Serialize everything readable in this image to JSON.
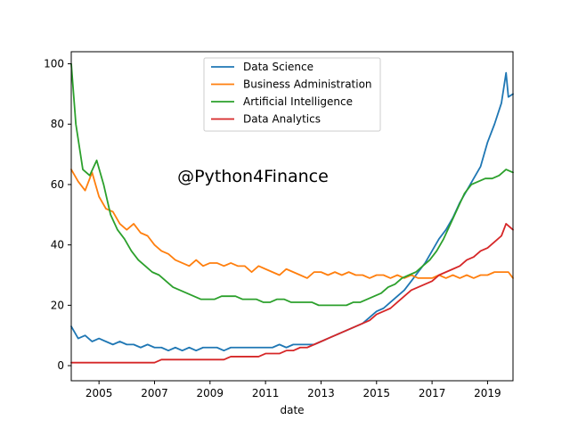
{
  "chart_data": {
    "type": "line",
    "xlabel": "date",
    "ylabel": "",
    "title": "",
    "xlim": [
      "2004-01",
      "2019-12"
    ],
    "ylim": [
      -5,
      104
    ],
    "x_ticks": [
      "2005",
      "2007",
      "2009",
      "2011",
      "2013",
      "2015",
      "2017",
      "2019"
    ],
    "y_ticks": [
      "0",
      "20",
      "40",
      "60",
      "80",
      "100"
    ],
    "legend_position": "top-center",
    "grid": false,
    "annotation": "@Python4Finance",
    "series": [
      {
        "name": "Data Science",
        "color": "#1f77b4",
        "points": [
          [
            "2004-01",
            13
          ],
          [
            "2004-04",
            9
          ],
          [
            "2004-07",
            10
          ],
          [
            "2004-10",
            8
          ],
          [
            "2005-01",
            9
          ],
          [
            "2005-04",
            8
          ],
          [
            "2005-07",
            7
          ],
          [
            "2005-10",
            8
          ],
          [
            "2006-01",
            7
          ],
          [
            "2006-04",
            7
          ],
          [
            "2006-07",
            6
          ],
          [
            "2006-10",
            7
          ],
          [
            "2007-01",
            6
          ],
          [
            "2007-04",
            6
          ],
          [
            "2007-07",
            5
          ],
          [
            "2007-10",
            6
          ],
          [
            "2008-01",
            5
          ],
          [
            "2008-04",
            6
          ],
          [
            "2008-07",
            5
          ],
          [
            "2008-10",
            6
          ],
          [
            "2009-01",
            6
          ],
          [
            "2009-04",
            6
          ],
          [
            "2009-07",
            5
          ],
          [
            "2009-10",
            6
          ],
          [
            "2010-01",
            6
          ],
          [
            "2010-04",
            6
          ],
          [
            "2010-07",
            6
          ],
          [
            "2010-10",
            6
          ],
          [
            "2011-01",
            6
          ],
          [
            "2011-04",
            6
          ],
          [
            "2011-07",
            7
          ],
          [
            "2011-10",
            6
          ],
          [
            "2012-01",
            7
          ],
          [
            "2012-04",
            7
          ],
          [
            "2012-07",
            7
          ],
          [
            "2012-10",
            7
          ],
          [
            "2013-01",
            8
          ],
          [
            "2013-04",
            9
          ],
          [
            "2013-07",
            10
          ],
          [
            "2013-10",
            11
          ],
          [
            "2014-01",
            12
          ],
          [
            "2014-04",
            13
          ],
          [
            "2014-07",
            14
          ],
          [
            "2014-10",
            16
          ],
          [
            "2015-01",
            18
          ],
          [
            "2015-04",
            19
          ],
          [
            "2015-07",
            21
          ],
          [
            "2015-10",
            23
          ],
          [
            "2016-01",
            25
          ],
          [
            "2016-04",
            28
          ],
          [
            "2016-07",
            31
          ],
          [
            "2016-10",
            34
          ],
          [
            "2017-01",
            38
          ],
          [
            "2017-04",
            42
          ],
          [
            "2017-07",
            45
          ],
          [
            "2017-10",
            49
          ],
          [
            "2018-01",
            54
          ],
          [
            "2018-04",
            58
          ],
          [
            "2018-07",
            62
          ],
          [
            "2018-10",
            66
          ],
          [
            "2019-01",
            74
          ],
          [
            "2019-04",
            80
          ],
          [
            "2019-07",
            87
          ],
          [
            "2019-09",
            97
          ],
          [
            "2019-10",
            89
          ],
          [
            "2019-12",
            90
          ]
        ]
      },
      {
        "name": "Business Administration",
        "color": "#ff7f0e",
        "points": [
          [
            "2004-01",
            65
          ],
          [
            "2004-04",
            61
          ],
          [
            "2004-07",
            58
          ],
          [
            "2004-10",
            64
          ],
          [
            "2005-01",
            56
          ],
          [
            "2005-04",
            52
          ],
          [
            "2005-07",
            51
          ],
          [
            "2005-10",
            47
          ],
          [
            "2006-01",
            45
          ],
          [
            "2006-04",
            47
          ],
          [
            "2006-07",
            44
          ],
          [
            "2006-10",
            43
          ],
          [
            "2007-01",
            40
          ],
          [
            "2007-04",
            38
          ],
          [
            "2007-07",
            37
          ],
          [
            "2007-10",
            35
          ],
          [
            "2008-01",
            34
          ],
          [
            "2008-04",
            33
          ],
          [
            "2008-07",
            35
          ],
          [
            "2008-10",
            33
          ],
          [
            "2009-01",
            34
          ],
          [
            "2009-04",
            34
          ],
          [
            "2009-07",
            33
          ],
          [
            "2009-10",
            34
          ],
          [
            "2010-01",
            33
          ],
          [
            "2010-04",
            33
          ],
          [
            "2010-07",
            31
          ],
          [
            "2010-10",
            33
          ],
          [
            "2011-01",
            32
          ],
          [
            "2011-04",
            31
          ],
          [
            "2011-07",
            30
          ],
          [
            "2011-10",
            32
          ],
          [
            "2012-01",
            31
          ],
          [
            "2012-04",
            30
          ],
          [
            "2012-07",
            29
          ],
          [
            "2012-10",
            31
          ],
          [
            "2013-01",
            31
          ],
          [
            "2013-04",
            30
          ],
          [
            "2013-07",
            31
          ],
          [
            "2013-10",
            30
          ],
          [
            "2014-01",
            31
          ],
          [
            "2014-04",
            30
          ],
          [
            "2014-07",
            30
          ],
          [
            "2014-10",
            29
          ],
          [
            "2015-01",
            30
          ],
          [
            "2015-04",
            30
          ],
          [
            "2015-07",
            29
          ],
          [
            "2015-10",
            30
          ],
          [
            "2016-01",
            29
          ],
          [
            "2016-04",
            30
          ],
          [
            "2016-07",
            29
          ],
          [
            "2016-10",
            29
          ],
          [
            "2017-01",
            29
          ],
          [
            "2017-04",
            30
          ],
          [
            "2017-07",
            29
          ],
          [
            "2017-10",
            30
          ],
          [
            "2018-01",
            29
          ],
          [
            "2018-04",
            30
          ],
          [
            "2018-07",
            29
          ],
          [
            "2018-10",
            30
          ],
          [
            "2019-01",
            30
          ],
          [
            "2019-04",
            31
          ],
          [
            "2019-07",
            31
          ],
          [
            "2019-10",
            31
          ],
          [
            "2019-12",
            29
          ]
        ]
      },
      {
        "name": "Artificial Intelligence",
        "color": "#2ca02c",
        "points": [
          [
            "2004-01",
            100
          ],
          [
            "2004-03",
            80
          ],
          [
            "2004-06",
            65
          ],
          [
            "2004-09",
            63
          ],
          [
            "2004-12",
            68
          ],
          [
            "2005-03",
            60
          ],
          [
            "2005-06",
            50
          ],
          [
            "2005-09",
            45
          ],
          [
            "2005-12",
            42
          ],
          [
            "2006-03",
            38
          ],
          [
            "2006-06",
            35
          ],
          [
            "2006-09",
            33
          ],
          [
            "2006-12",
            31
          ],
          [
            "2007-03",
            30
          ],
          [
            "2007-06",
            28
          ],
          [
            "2007-09",
            26
          ],
          [
            "2007-12",
            25
          ],
          [
            "2008-03",
            24
          ],
          [
            "2008-06",
            23
          ],
          [
            "2008-09",
            22
          ],
          [
            "2008-12",
            22
          ],
          [
            "2009-03",
            22
          ],
          [
            "2009-06",
            23
          ],
          [
            "2009-09",
            23
          ],
          [
            "2009-12",
            23
          ],
          [
            "2010-03",
            22
          ],
          [
            "2010-06",
            22
          ],
          [
            "2010-09",
            22
          ],
          [
            "2010-12",
            21
          ],
          [
            "2011-03",
            21
          ],
          [
            "2011-06",
            22
          ],
          [
            "2011-09",
            22
          ],
          [
            "2011-12",
            21
          ],
          [
            "2012-03",
            21
          ],
          [
            "2012-06",
            21
          ],
          [
            "2012-09",
            21
          ],
          [
            "2012-12",
            20
          ],
          [
            "2013-03",
            20
          ],
          [
            "2013-06",
            20
          ],
          [
            "2013-09",
            20
          ],
          [
            "2013-12",
            20
          ],
          [
            "2014-03",
            21
          ],
          [
            "2014-06",
            21
          ],
          [
            "2014-09",
            22
          ],
          [
            "2014-12",
            23
          ],
          [
            "2015-03",
            24
          ],
          [
            "2015-06",
            26
          ],
          [
            "2015-09",
            27
          ],
          [
            "2015-12",
            29
          ],
          [
            "2016-03",
            30
          ],
          [
            "2016-06",
            31
          ],
          [
            "2016-09",
            33
          ],
          [
            "2016-12",
            35
          ],
          [
            "2017-03",
            38
          ],
          [
            "2017-06",
            42
          ],
          [
            "2017-09",
            47
          ],
          [
            "2017-12",
            52
          ],
          [
            "2018-03",
            57
          ],
          [
            "2018-06",
            60
          ],
          [
            "2018-09",
            61
          ],
          [
            "2018-12",
            62
          ],
          [
            "2019-03",
            62
          ],
          [
            "2019-06",
            63
          ],
          [
            "2019-09",
            65
          ],
          [
            "2019-12",
            64
          ]
        ]
      },
      {
        "name": "Data Analytics",
        "color": "#d62728",
        "points": [
          [
            "2004-01",
            1
          ],
          [
            "2004-04",
            1
          ],
          [
            "2004-07",
            1
          ],
          [
            "2004-10",
            1
          ],
          [
            "2005-01",
            1
          ],
          [
            "2005-04",
            1
          ],
          [
            "2005-07",
            1
          ],
          [
            "2005-10",
            1
          ],
          [
            "2006-01",
            1
          ],
          [
            "2006-04",
            1
          ],
          [
            "2006-07",
            1
          ],
          [
            "2006-10",
            1
          ],
          [
            "2007-01",
            1
          ],
          [
            "2007-04",
            2
          ],
          [
            "2007-07",
            2
          ],
          [
            "2007-10",
            2
          ],
          [
            "2008-01",
            2
          ],
          [
            "2008-04",
            2
          ],
          [
            "2008-07",
            2
          ],
          [
            "2008-10",
            2
          ],
          [
            "2009-01",
            2
          ],
          [
            "2009-04",
            2
          ],
          [
            "2009-07",
            2
          ],
          [
            "2009-10",
            3
          ],
          [
            "2010-01",
            3
          ],
          [
            "2010-04",
            3
          ],
          [
            "2010-07",
            3
          ],
          [
            "2010-10",
            3
          ],
          [
            "2011-01",
            4
          ],
          [
            "2011-04",
            4
          ],
          [
            "2011-07",
            4
          ],
          [
            "2011-10",
            5
          ],
          [
            "2012-01",
            5
          ],
          [
            "2012-04",
            6
          ],
          [
            "2012-07",
            6
          ],
          [
            "2012-10",
            7
          ],
          [
            "2013-01",
            8
          ],
          [
            "2013-04",
            9
          ],
          [
            "2013-07",
            10
          ],
          [
            "2013-10",
            11
          ],
          [
            "2014-01",
            12
          ],
          [
            "2014-04",
            13
          ],
          [
            "2014-07",
            14
          ],
          [
            "2014-10",
            15
          ],
          [
            "2015-01",
            17
          ],
          [
            "2015-04",
            18
          ],
          [
            "2015-07",
            19
          ],
          [
            "2015-10",
            21
          ],
          [
            "2016-01",
            23
          ],
          [
            "2016-04",
            25
          ],
          [
            "2016-07",
            26
          ],
          [
            "2016-10",
            27
          ],
          [
            "2017-01",
            28
          ],
          [
            "2017-04",
            30
          ],
          [
            "2017-07",
            31
          ],
          [
            "2017-10",
            32
          ],
          [
            "2018-01",
            33
          ],
          [
            "2018-04",
            35
          ],
          [
            "2018-07",
            36
          ],
          [
            "2018-10",
            38
          ],
          [
            "2019-01",
            39
          ],
          [
            "2019-04",
            41
          ],
          [
            "2019-07",
            43
          ],
          [
            "2019-09",
            47
          ],
          [
            "2019-12",
            45
          ]
        ]
      }
    ]
  }
}
